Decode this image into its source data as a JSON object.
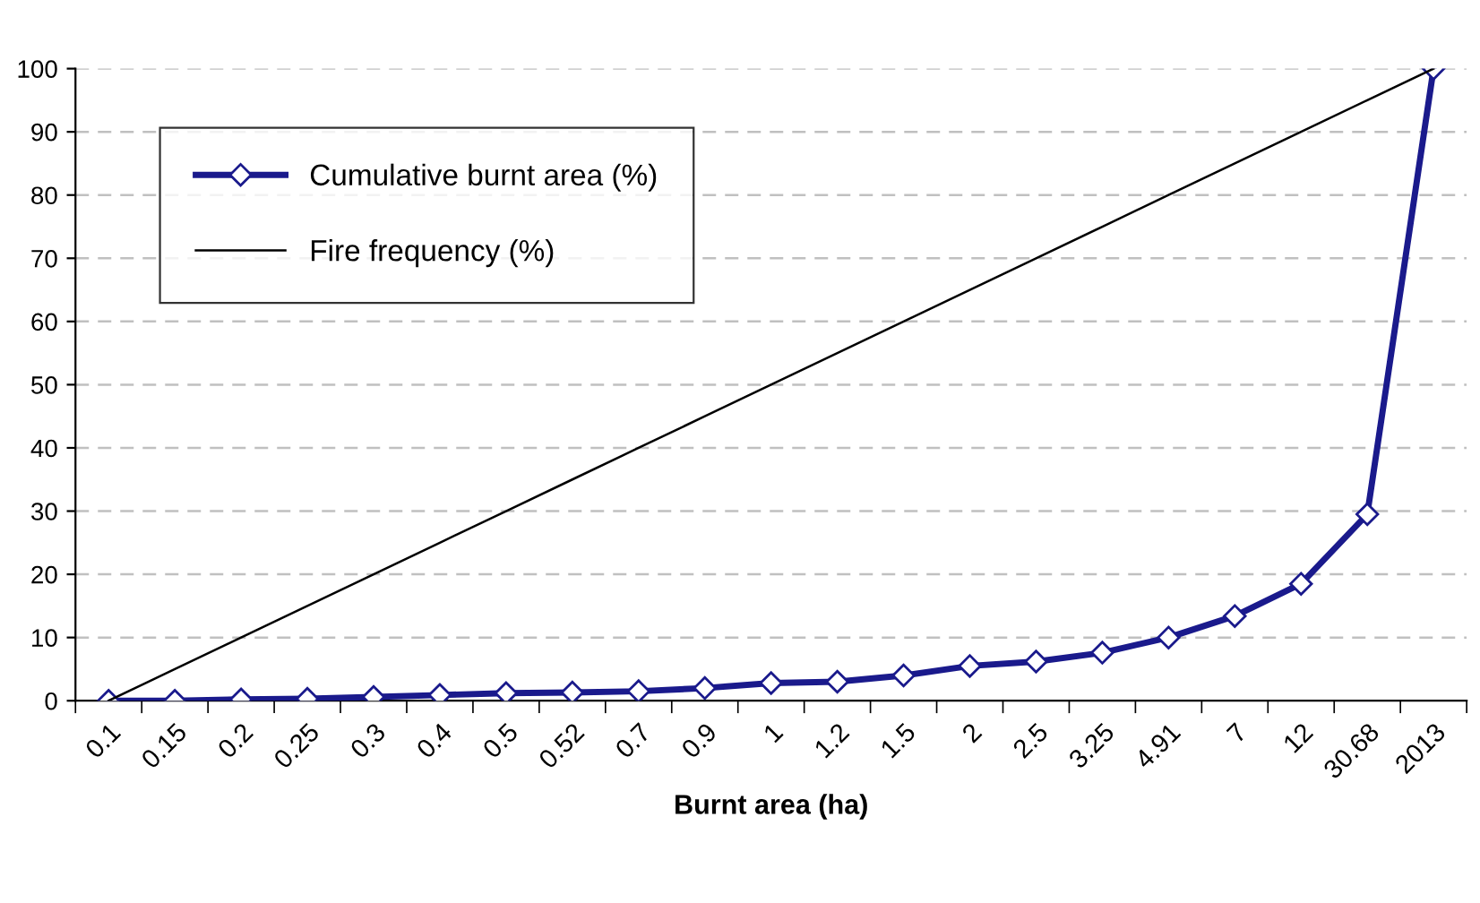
{
  "chart_data": {
    "type": "line",
    "xlabel": "Burnt area (ha)",
    "categories": [
      "0.1",
      "0.15",
      "0.2",
      "0.25",
      "0.3",
      "0.4",
      "0.5",
      "0.52",
      "0.7",
      "0.9",
      "1",
      "1.2",
      "1.5",
      "2",
      "2.5",
      "3.25",
      "4.91",
      "7",
      "12",
      "30.68",
      "2013"
    ],
    "series": [
      {
        "name": "Cumulative burnt area (%)",
        "color": "#1a1a8c",
        "marker": "diamond",
        "values": [
          0,
          0,
          0.2,
          0.3,
          0.6,
          0.9,
          1.2,
          1.3,
          1.5,
          2.0,
          2.8,
          3.0,
          4.0,
          5.5,
          6.2,
          7.6,
          10,
          13.4,
          18.5,
          29.5,
          100
        ]
      },
      {
        "name": "Fire frequency (%)",
        "color": "#000000",
        "marker": "none",
        "values": [
          0,
          5,
          10,
          15,
          20,
          25,
          30,
          35,
          40,
          45,
          50,
          55,
          60,
          65,
          70,
          75,
          80,
          85,
          90,
          95,
          100
        ]
      }
    ],
    "ylim": [
      0,
      100
    ],
    "yticks": [
      0,
      10,
      20,
      30,
      40,
      50,
      60,
      70,
      80,
      90,
      100
    ],
    "grid": "y",
    "legend": "top left"
  }
}
